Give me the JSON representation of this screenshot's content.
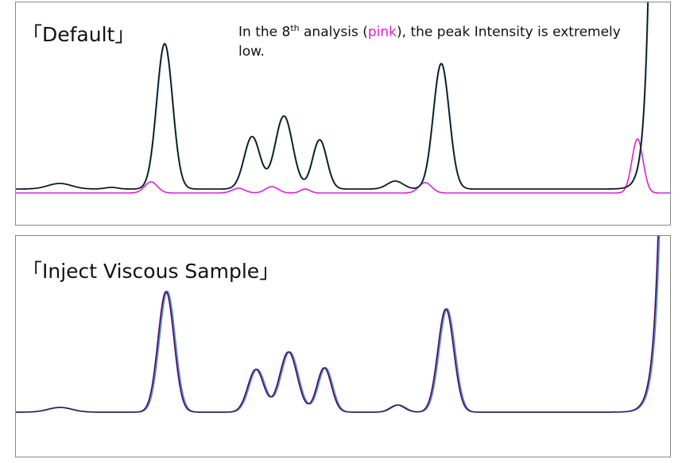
{
  "panels": [
    {
      "title": "「Default」",
      "annotation": [
        "In the 8",
        "th",
        " analysis (",
        "pink",
        "), the peak Intensity is extremely low."
      ]
    },
    {
      "title": "「Inject Viscous Sample」"
    }
  ]
}
